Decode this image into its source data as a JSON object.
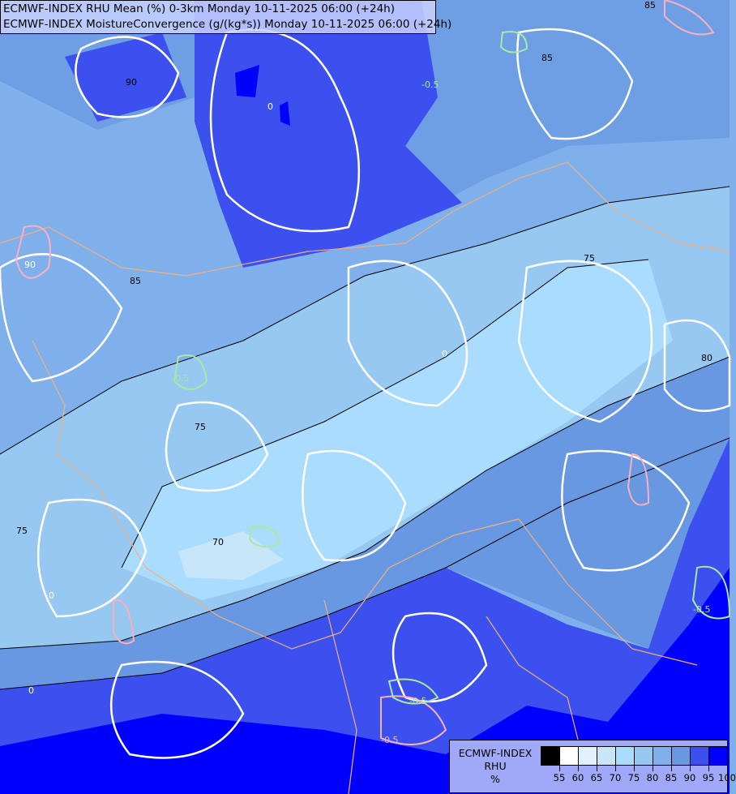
{
  "header": {
    "line1": "ECMWF-INDEX RHU Mean (%) 0-3km Monday 10-11-2025 06:00 (+24h)",
    "line2": "ECMWF-INDEX MoistureConvergence (g/(kg*s)) Monday 10-11-2025 06:00 (+24h)"
  },
  "legend": {
    "title1": "ECMWF-INDEX",
    "title2": "RHU",
    "unit": "%",
    "colors": [
      "#000000",
      "#ffffff",
      "#e2f2fc",
      "#c8e6fa",
      "#aadcff",
      "#96c8f2",
      "#80b0ec",
      "#6898e2",
      "#3c50f0",
      "#0000ff"
    ],
    "ticks": [
      "55",
      "60",
      "65",
      "70",
      "75",
      "80",
      "85",
      "90",
      "95",
      "100"
    ]
  },
  "map": {
    "rhu_contour_labels": [
      "90",
      "85",
      "75",
      "80",
      "75",
      "70",
      "75",
      "85",
      "90",
      "85"
    ],
    "convergence_labels": [
      "0",
      "0",
      "-0.5",
      "-0.5",
      "-0.5",
      "-0.5",
      "0",
      "0",
      "-0.5"
    ]
  }
}
